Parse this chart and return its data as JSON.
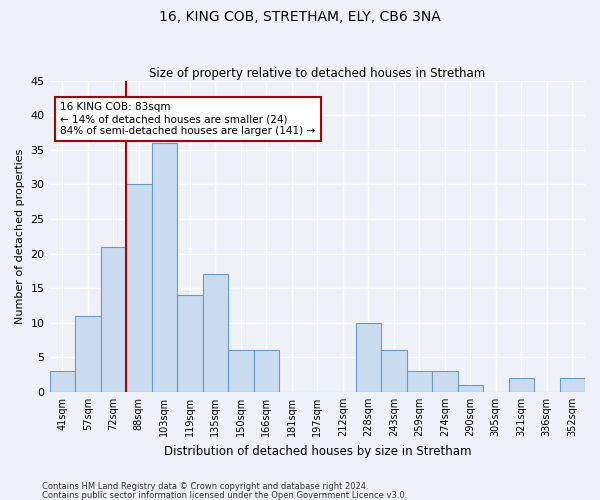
{
  "title": "16, KING COB, STRETHAM, ELY, CB6 3NA",
  "subtitle": "Size of property relative to detached houses in Stretham",
  "xlabel": "Distribution of detached houses by size in Stretham",
  "ylabel": "Number of detached properties",
  "categories": [
    "41sqm",
    "57sqm",
    "72sqm",
    "88sqm",
    "103sqm",
    "119sqm",
    "135sqm",
    "150sqm",
    "166sqm",
    "181sqm",
    "197sqm",
    "212sqm",
    "228sqm",
    "243sqm",
    "259sqm",
    "274sqm",
    "290sqm",
    "305sqm",
    "321sqm",
    "336sqm",
    "352sqm"
  ],
  "values": [
    3,
    11,
    21,
    30,
    36,
    14,
    17,
    6,
    6,
    0,
    0,
    0,
    10,
    6,
    3,
    3,
    1,
    0,
    2,
    0,
    2
  ],
  "bar_color": "#c9dcef",
  "bar_edge_color": "#6699cc",
  "vline_color": "#aa0000",
  "annotation_text": "16 KING COB: 83sqm\n← 14% of detached houses are smaller (24)\n84% of semi-detached houses are larger (141) →",
  "annotation_box_color": "#ffffff",
  "annotation_box_edge": "#aa0000",
  "ylim": [
    0,
    45
  ],
  "yticks": [
    0,
    5,
    10,
    15,
    20,
    25,
    30,
    35,
    40,
    45
  ],
  "background_color": "#eef2f8",
  "grid_color": "#ffffff",
  "footer_line1": "Contains HM Land Registry data © Crown copyright and database right 2024.",
  "footer_line2": "Contains public sector information licensed under the Open Government Licence v3.0."
}
